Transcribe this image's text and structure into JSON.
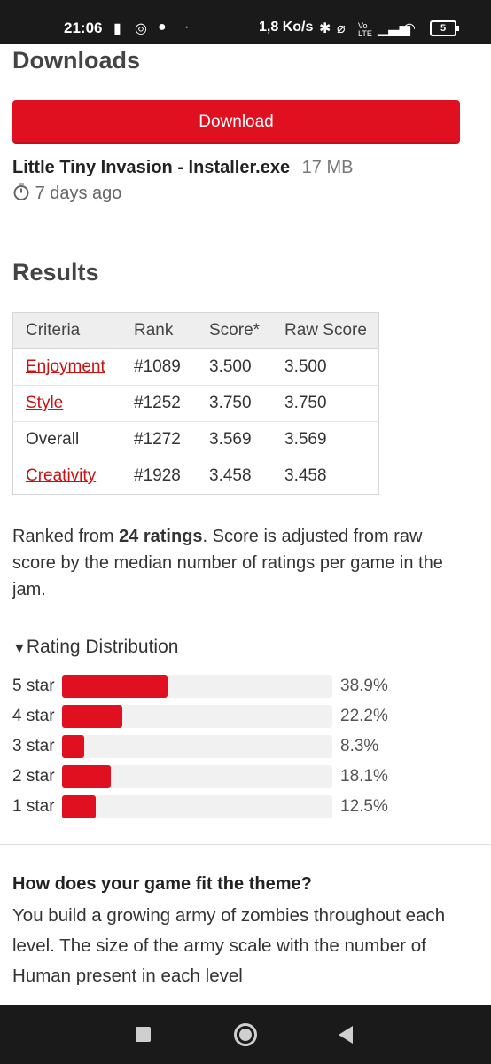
{
  "status_bar": {
    "time": "21:06",
    "net_speed": "1,8 Ko/s",
    "battery": "5",
    "volte": "Vo LTE"
  },
  "downloads": {
    "title": "Downloads",
    "button_label": "Download",
    "file_name": "Little Tiny Invasion - Installer.exe",
    "file_size": "17 MB",
    "uploaded": "7 days ago"
  },
  "results": {
    "title": "Results",
    "columns": [
      "Criteria",
      "Rank",
      "Score*",
      "Raw Score"
    ],
    "rows": [
      {
        "criteria": "Enjoyment",
        "rank": "#1089",
        "score": "3.500",
        "raw": "3.500"
      },
      {
        "criteria": "Style",
        "rank": "#1252",
        "score": "3.750",
        "raw": "3.750"
      },
      {
        "criteria": "Overall",
        "rank": "#1272",
        "score": "3.569",
        "raw": "3.569"
      },
      {
        "criteria": "Creativity",
        "rank": "#1928",
        "score": "3.458",
        "raw": "3.458"
      }
    ],
    "ranked_prefix": "Ranked from ",
    "ratings_count": "24 ratings",
    "ranked_suffix": ". Score is adjusted from raw score by the median number of ratings per game in the jam."
  },
  "distribution": {
    "title": "Rating Distribution",
    "accent_color": "#e01020",
    "rows": [
      {
        "label": "5 star",
        "pct": "38.9%",
        "fraction": 0.389
      },
      {
        "label": "4 star",
        "pct": "22.2%",
        "fraction": 0.222
      },
      {
        "label": "3 star",
        "pct": "8.3%",
        "fraction": 0.083
      },
      {
        "label": "2 star",
        "pct": "18.1%",
        "fraction": 0.181
      },
      {
        "label": "1 star",
        "pct": "12.5%",
        "fraction": 0.125
      }
    ]
  },
  "theme": {
    "question": "How does your game fit the theme?",
    "answer": "You build a growing army of zombies throughout each level. The size of the army scale with the number of Human present in each level"
  },
  "nav": {
    "icons": [
      "recents-square-icon",
      "home-circle-icon",
      "back-triangle-icon"
    ]
  }
}
